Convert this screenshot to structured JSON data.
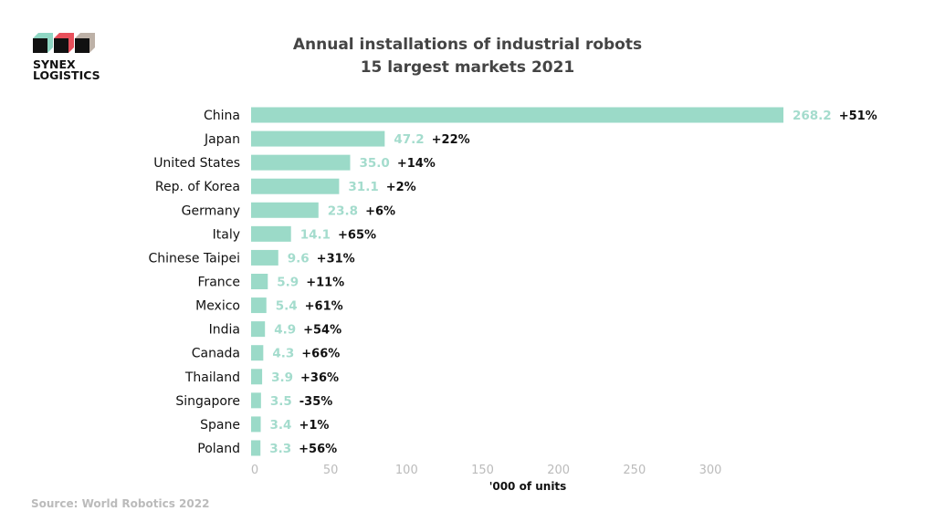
{
  "logo": {
    "line1": "SYNEX",
    "line2": "LOGISTICS",
    "colors": [
      "#8fd6c3",
      "#e8505b",
      "#bdb1a7"
    ]
  },
  "source": "Source: World Robotics 2022",
  "chart_data": {
    "type": "bar",
    "orientation": "horizontal",
    "title": "Annual installations of industrial robots",
    "subtitle": "15 largest markets 2021",
    "xlabel": "'000 of units",
    "ylabel": "",
    "xlim": [
      0,
      300
    ],
    "xticks": [
      "0",
      "50",
      "100",
      "150",
      "200",
      "250",
      "300"
    ],
    "grid": false,
    "bar_color": "#9bdac8",
    "categories": [
      "China",
      "Japan",
      "United States",
      "Rep. of Korea",
      "Germany",
      "Italy",
      "Chinese Taipei",
      "France",
      "Mexico",
      "India",
      "Canada",
      "Thailand",
      "Singapore",
      "Spane",
      "Poland"
    ],
    "values": [
      268.2,
      47.2,
      35.0,
      31.1,
      23.8,
      14.1,
      9.6,
      5.9,
      5.4,
      4.9,
      4.3,
      3.9,
      3.5,
      3.4,
      3.3
    ],
    "value_labels": [
      "268.2",
      "47.2",
      "35.0",
      "31.1",
      "23.8",
      "14.1",
      "9.6",
      "5.9",
      "5.4",
      "4.9",
      "4.3",
      "3.9",
      "3.5",
      "3.4",
      "3.3"
    ],
    "change_labels": [
      "+51%",
      "+22%",
      "+14%",
      "+2%",
      "+6%",
      "+65%",
      "+31%",
      "+11%",
      "+61%",
      "+54%",
      "+66%",
      "+36%",
      "-35%",
      "+1%",
      "+56%"
    ]
  }
}
